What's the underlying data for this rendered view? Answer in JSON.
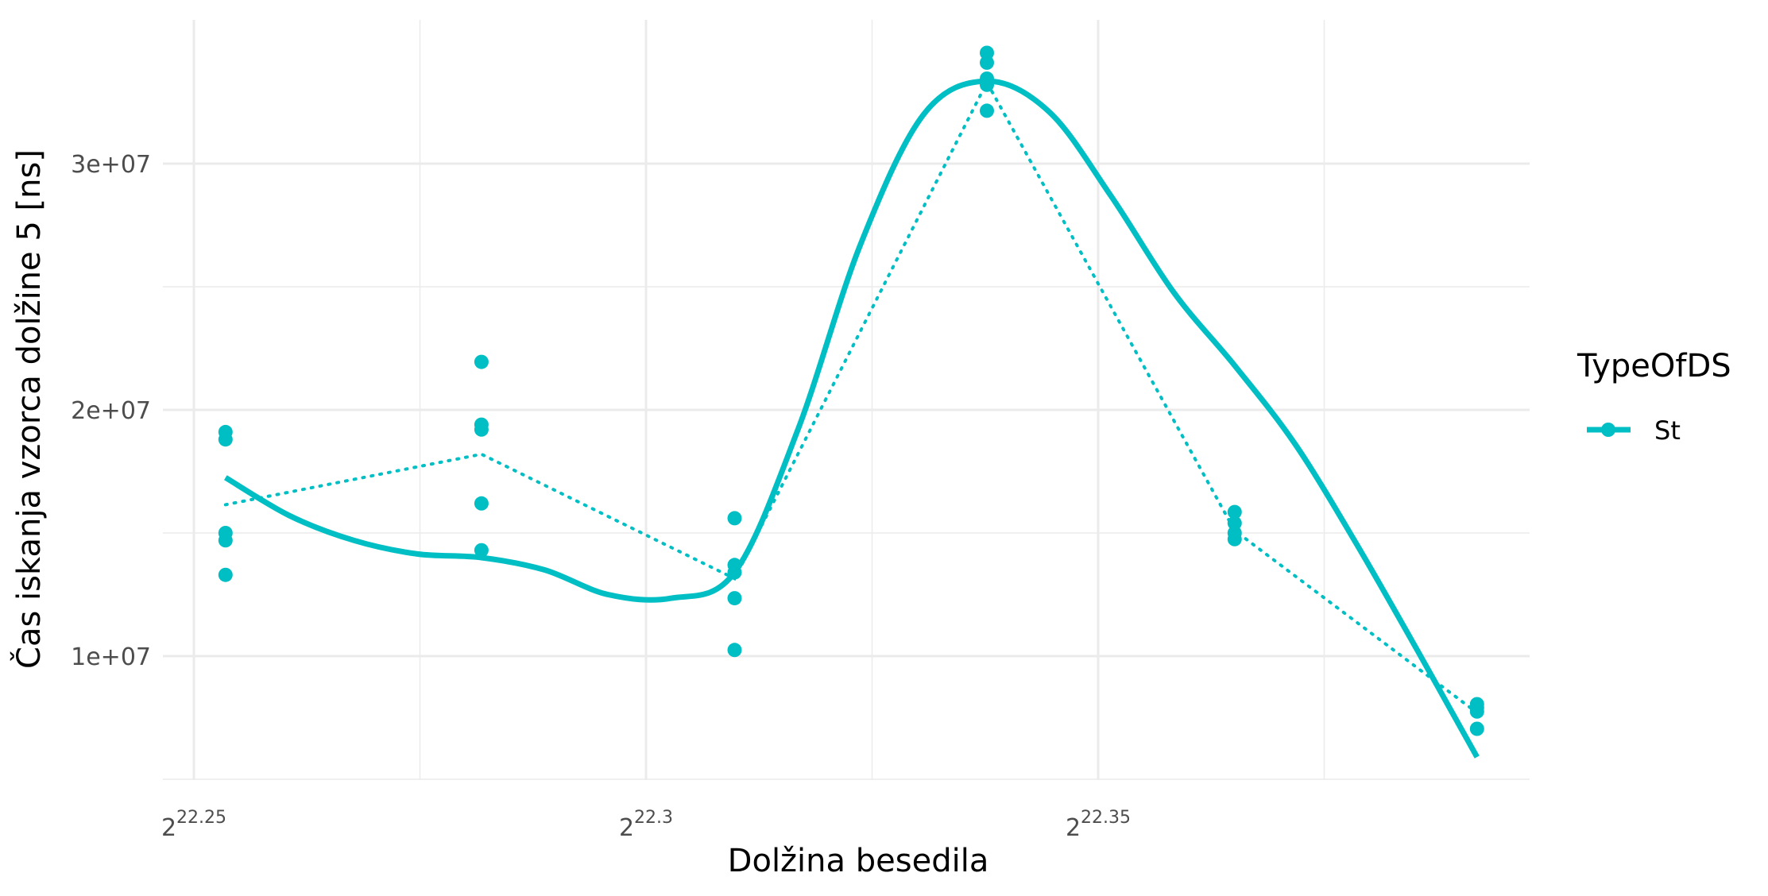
{
  "chart_data": {
    "type": "scatter",
    "xlabel": "Dolžina besedila",
    "ylabel": "Čas iskanja vzorca dolžine 5 [ns]",
    "x_scale": "log2",
    "x_ticks": [
      {
        "value": 22.25,
        "base": "2",
        "exp": "22.25"
      },
      {
        "value": 22.3,
        "base": "2",
        "exp": "22.3"
      },
      {
        "value": 22.35,
        "base": "2",
        "exp": "22.35"
      }
    ],
    "xlim": [
      22.2475,
      22.3975
    ],
    "y_ticks": [
      {
        "value": 10000000,
        "label": "1e+07"
      },
      {
        "value": 20000000,
        "label": "2e+07"
      },
      {
        "value": 30000000,
        "label": "3e+07"
      }
    ],
    "ylim": [
      5000000,
      35000000
    ],
    "grid": true,
    "legend": {
      "title": "TypeOfDS",
      "position": "right",
      "entries": [
        {
          "label": "St",
          "color": "#00bfc4"
        }
      ]
    },
    "color": "#00bfc4",
    "series": [
      {
        "name": "St",
        "points": [
          {
            "x": 22.2535,
            "y": 19100000
          },
          {
            "x": 22.2535,
            "y": 18800000
          },
          {
            "x": 22.2535,
            "y": 15000000
          },
          {
            "x": 22.2535,
            "y": 14700000
          },
          {
            "x": 22.2535,
            "y": 13300000
          },
          {
            "x": 22.2818,
            "y": 21950000
          },
          {
            "x": 22.2818,
            "y": 19400000
          },
          {
            "x": 22.2818,
            "y": 19200000
          },
          {
            "x": 22.2818,
            "y": 16200000
          },
          {
            "x": 22.2818,
            "y": 14300000
          },
          {
            "x": 22.3098,
            "y": 15600000
          },
          {
            "x": 22.3098,
            "y": 13700000
          },
          {
            "x": 22.3098,
            "y": 13400000
          },
          {
            "x": 22.3098,
            "y": 12350000
          },
          {
            "x": 22.3098,
            "y": 10250000
          },
          {
            "x": 22.3377,
            "y": 34500000
          },
          {
            "x": 22.3377,
            "y": 34100000
          },
          {
            "x": 22.3377,
            "y": 33450000
          },
          {
            "x": 22.3377,
            "y": 33200000
          },
          {
            "x": 22.3377,
            "y": 32150000
          },
          {
            "x": 22.3651,
            "y": 15850000
          },
          {
            "x": 22.3651,
            "y": 15400000
          },
          {
            "x": 22.3651,
            "y": 15000000
          },
          {
            "x": 22.3651,
            "y": 14750000
          },
          {
            "x": 22.3919,
            "y": 8050000
          },
          {
            "x": 22.3919,
            "y": 7900000
          },
          {
            "x": 22.3919,
            "y": 7750000
          },
          {
            "x": 22.3919,
            "y": 7050000
          }
        ],
        "mean_line": [
          {
            "x": 22.2535,
            "y": 16150000
          },
          {
            "x": 22.2818,
            "y": 18200000
          },
          {
            "x": 22.3098,
            "y": 13150000
          },
          {
            "x": 22.3377,
            "y": 33300000
          },
          {
            "x": 22.3651,
            "y": 15100000
          },
          {
            "x": 22.3919,
            "y": 7700000
          }
        ],
        "smooth_line": [
          {
            "x": 22.2535,
            "y": 17250000
          },
          {
            "x": 22.2606,
            "y": 15700000
          },
          {
            "x": 22.2677,
            "y": 14700000
          },
          {
            "x": 22.2747,
            "y": 14150000
          },
          {
            "x": 22.2818,
            "y": 14000000
          },
          {
            "x": 22.2888,
            "y": 13500000
          },
          {
            "x": 22.2958,
            "y": 12500000
          },
          {
            "x": 22.3028,
            "y": 12350000
          },
          {
            "x": 22.3098,
            "y": 13400000
          },
          {
            "x": 22.3168,
            "y": 19200000
          },
          {
            "x": 22.3237,
            "y": 26700000
          },
          {
            "x": 22.3307,
            "y": 32000000
          },
          {
            "x": 22.3377,
            "y": 33350000
          },
          {
            "x": 22.3446,
            "y": 32100000
          },
          {
            "x": 22.3514,
            "y": 28700000
          },
          {
            "x": 22.3583,
            "y": 24800000
          },
          {
            "x": 22.3651,
            "y": 21800000
          },
          {
            "x": 22.3718,
            "y": 18600000
          },
          {
            "x": 22.3785,
            "y": 14600000
          },
          {
            "x": 22.3852,
            "y": 10300000
          },
          {
            "x": 22.3919,
            "y": 5900000
          }
        ]
      }
    ]
  }
}
